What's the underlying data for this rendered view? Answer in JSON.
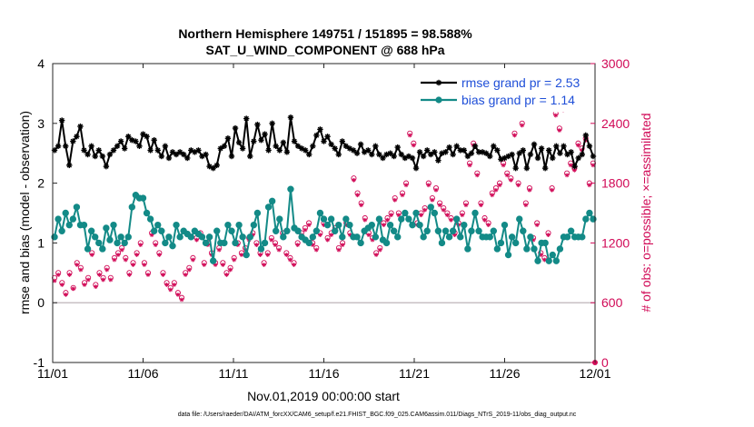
{
  "colors": {
    "rmse": "#000000",
    "bias": "#138a87",
    "obs": "#d10a57",
    "legend_text": "#1f4fd8",
    "zero_line": "#c8c0c4"
  },
  "chart_data": {
    "type": "line",
    "title_line1": "Northern Hemisphere 149751 / 151895 = 98.588%",
    "title_line2": "SAT_U_WIND_COMPONENT @ 688 hPa",
    "xlabel": "Nov.01,2019 00:00:00 start",
    "ylabel_left": "rmse and bias (model - observation)",
    "ylabel_right": "# of obs: o=possible; ×=assimilated",
    "xlim": [
      0,
      30
    ],
    "ylim_left": [
      -1,
      4
    ],
    "ylim_right": [
      0,
      3000
    ],
    "x_ticks": [
      0,
      5,
      10,
      15,
      20,
      25,
      30
    ],
    "x_tick_labels": [
      "11/01",
      "11/06",
      "11/11",
      "11/16",
      "11/21",
      "11/26",
      "12/01"
    ],
    "y_ticks_left": [
      -1,
      0,
      1,
      2,
      3,
      4
    ],
    "y_tick_labels_left": [
      "-1",
      "0",
      "1",
      "2",
      "3",
      "4"
    ],
    "y_ticks_right": [
      0,
      600,
      1200,
      1800,
      2400,
      3000
    ],
    "y_tick_labels_right": [
      "0",
      "600",
      "1200",
      "1800",
      "2400",
      "3000"
    ],
    "legend": [
      "rmse grand pr = 2.53",
      "bias grand pr = 1.14"
    ],
    "footnote": "data file: /Users/raeder/DAI/ATM_forcXX/CAM6_setup/f.e21.FHIST_BGC.f09_025.CAM6assim.011/Diags_NTrS_2019-11/obs_diag_output.nc",
    "series": [
      {
        "name": "rmse",
        "axis": "left",
        "style": "line-marker-star",
        "values": [
          2.55,
          2.62,
          3.05,
          2.62,
          2.3,
          2.7,
          2.78,
          2.95,
          2.55,
          2.48,
          2.62,
          2.45,
          2.55,
          2.45,
          2.28,
          2.48,
          2.55,
          2.62,
          2.7,
          2.58,
          2.78,
          2.72,
          2.7,
          2.62,
          2.82,
          2.78,
          2.55,
          2.72,
          2.55,
          2.45,
          2.62,
          2.42,
          2.52,
          2.48,
          2.52,
          2.48,
          2.42,
          2.55,
          2.52,
          2.55,
          2.45,
          2.48,
          2.28,
          2.25,
          2.3,
          2.58,
          2.62,
          2.75,
          2.45,
          2.92,
          2.68,
          2.58,
          3.08,
          2.45,
          2.7,
          2.98,
          2.72,
          2.82,
          2.55,
          3.0,
          2.62,
          2.55,
          2.68,
          2.52,
          3.1,
          2.7,
          2.62,
          2.58,
          2.55,
          2.48,
          2.62,
          2.8,
          2.9,
          2.7,
          2.78,
          2.65,
          2.58,
          2.48,
          2.7,
          2.62,
          2.58,
          2.55,
          2.5,
          2.65,
          2.52,
          2.55,
          2.48,
          2.62,
          2.48,
          2.42,
          2.48,
          2.5,
          2.45,
          2.6,
          2.48,
          2.42,
          2.45,
          2.42,
          2.25,
          2.52,
          2.45,
          2.55,
          2.48,
          2.52,
          2.38,
          2.5,
          2.52,
          2.6,
          2.48,
          2.62,
          2.55,
          2.55,
          2.45,
          2.5,
          2.62,
          2.52,
          2.52,
          2.5,
          2.45,
          2.62,
          2.55,
          2.4,
          2.42,
          2.45,
          2.48,
          2.25,
          2.5,
          2.55,
          2.25,
          2.48,
          2.65,
          2.42,
          2.58,
          2.25,
          2.55,
          2.42,
          2.62,
          2.5,
          2.62,
          2.48,
          2.52,
          2.28,
          2.42,
          2.48,
          2.8,
          2.62,
          2.45
        ]
      },
      {
        "name": "bias",
        "axis": "left",
        "style": "line-marker-dot",
        "values": [
          1.1,
          1.4,
          1.2,
          1.5,
          1.3,
          1.4,
          1.6,
          1.3,
          1.3,
          0.9,
          1.2,
          1.1,
          1.0,
          0.9,
          1.25,
          1.05,
          1.3,
          1.0,
          1.1,
          1.0,
          1.1,
          1.6,
          1.8,
          1.75,
          1.75,
          1.5,
          1.4,
          1.2,
          1.3,
          1.2,
          1.0,
          1.1,
          0.95,
          1.3,
          1.1,
          1.2,
          1.15,
          1.1,
          1.2,
          1.15,
          1.1,
          1.0,
          1.1,
          0.7,
          1.2,
          1.0,
          1.0,
          1.3,
          1.2,
          1.0,
          1.3,
          1.1,
          0.8,
          1.1,
          1.3,
          1.5,
          0.9,
          1.0,
          1.6,
          1.7,
          1.2,
          1.4,
          1.1,
          1.2,
          1.9,
          1.25,
          1.2,
          1.1,
          1.05,
          1.0,
          1.1,
          1.2,
          1.5,
          1.4,
          1.3,
          1.4,
          1.2,
          1.3,
          1.1,
          1.4,
          1.3,
          1.1,
          1.1,
          1.0,
          1.2,
          1.25,
          1.3,
          1.1,
          1.4,
          1.05,
          1.0,
          1.3,
          1.2,
          1.1,
          1.4,
          1.5,
          1.4,
          1.3,
          1.5,
          1.3,
          1.1,
          1.2,
          1.6,
          1.5,
          1.2,
          1.0,
          1.2,
          1.1,
          1.2,
          1.4,
          1.1,
          1.3,
          0.9,
          1.2,
          1.5,
          1.2,
          1.1,
          1.1,
          1.1,
          1.2,
          0.9,
          1.0,
          1.3,
          0.8,
          1.1,
          1.0,
          1.4,
          1.2,
          0.9,
          1.1,
          0.9,
          0.7,
          1.0,
          1.0,
          0.7,
          0.8,
          0.7,
          0.9,
          1.1,
          1.1,
          1.2,
          1.1,
          1.1,
          1.1,
          1.4,
          1.5,
          1.4
        ]
      },
      {
        "name": "obs possible",
        "axis": "right",
        "style": "marker-circle",
        "values": [
          850,
          900,
          800,
          700,
          900,
          750,
          1000,
          950,
          800,
          850,
          1100,
          780,
          900,
          850,
          950,
          850,
          1050,
          1100,
          1150,
          1050,
          900,
          1000,
          1100,
          1200,
          1000,
          900,
          1300,
          1200,
          1100,
          900,
          800,
          750,
          800,
          700,
          650,
          900,
          950,
          1050,
          1250,
          1300,
          1000,
          1200,
          1100,
          1000,
          1150,
          1000,
          900,
          950,
          1050,
          1200,
          1100,
          1150,
          1250,
          1300,
          1200,
          1100,
          1000,
          1100,
          1250,
          1200,
          1150,
          1300,
          1100,
          1050,
          1000,
          1200,
          1300,
          1350,
          1400,
          1200,
          1150,
          1300,
          1400,
          1250,
          1300,
          1350,
          1150,
          1200,
          1400,
          1300,
          1850,
          1700,
          1600,
          1450,
          1300,
          1250,
          1100,
          1150,
          1400,
          1450,
          1500,
          1650,
          1500,
          1700,
          1800,
          2300,
          2200,
          1400,
          1500,
          1550,
          1800,
          1650,
          1750,
          1600,
          1550,
          1500,
          1450,
          1300,
          1400,
          1500,
          1600,
          2000,
          2200,
          1900,
          1600,
          1450,
          1400,
          1700,
          1750,
          1800,
          2000,
          1900,
          1850,
          2300,
          1800,
          2400,
          1600,
          1750,
          1250,
          1400,
          1100,
          1050,
          1300,
          1750,
          2500,
          2350,
          2550,
          1900,
          2000,
          1950,
          2200,
          2150,
          2250,
          1800,
          2000
        ]
      },
      {
        "name": "obs assimilated",
        "axis": "right",
        "style": "marker-asterisk",
        "values": [
          820,
          880,
          780,
          680,
          880,
          740,
          980,
          930,
          780,
          830,
          1080,
          760,
          880,
          830,
          930,
          830,
          1030,
          1080,
          1130,
          1030,
          880,
          980,
          1080,
          1180,
          980,
          880,
          1280,
          1180,
          1080,
          880,
          780,
          730,
          780,
          680,
          630,
          880,
          930,
          1030,
          1230,
          1280,
          980,
          1180,
          1080,
          980,
          1130,
          980,
          880,
          930,
          1030,
          1180,
          1080,
          1130,
          1230,
          1280,
          1180,
          1080,
          980,
          1080,
          1230,
          1180,
          1130,
          1280,
          1080,
          1030,
          980,
          1180,
          1280,
          1330,
          1380,
          1180,
          1130,
          1280,
          1380,
          1230,
          1280,
          1330,
          1130,
          1180,
          1380,
          1280,
          1830,
          1680,
          1580,
          1430,
          1280,
          1230,
          1080,
          1130,
          1380,
          1430,
          1480,
          1630,
          1480,
          1680,
          1780,
          2280,
          2180,
          1380,
          1480,
          1530,
          1780,
          1630,
          1730,
          1580,
          1530,
          1480,
          1430,
          1280,
          1380,
          1480,
          1580,
          1980,
          2180,
          1880,
          1580,
          1430,
          1380,
          1680,
          1730,
          1780,
          1980,
          1880,
          1830,
          2280,
          1780,
          2380,
          1580,
          1730,
          1230,
          1380,
          1080,
          1030,
          1280,
          1730,
          2480,
          2330,
          2530,
          1880,
          1980,
          1930,
          2180,
          2130,
          2230,
          1780,
          1980
        ]
      }
    ]
  }
}
